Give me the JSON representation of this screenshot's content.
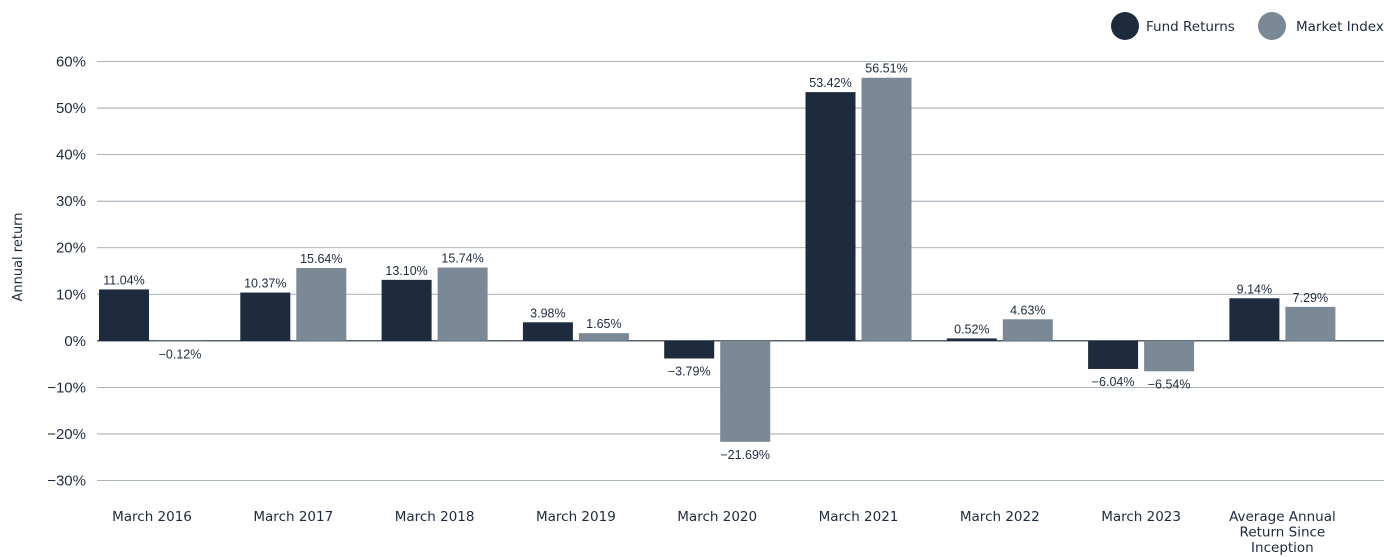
{
  "chart_data": {
    "type": "bar",
    "ylabel": "Annual return",
    "ylim": [
      -30,
      60
    ],
    "yticks": [
      60,
      50,
      40,
      30,
      20,
      10,
      0,
      -10,
      -20,
      -30
    ],
    "ytick_labels": [
      "60%",
      "50%",
      "40%",
      "30%",
      "20%",
      "10%",
      "0%",
      "−10%",
      "−20%",
      "−30%"
    ],
    "grid": true,
    "legend_position": "top-right",
    "categories": [
      [
        "March 2016"
      ],
      [
        "March 2017"
      ],
      [
        "March 2018"
      ],
      [
        "March 2019"
      ],
      [
        "March 2020"
      ],
      [
        "March 2021"
      ],
      [
        "March 2022"
      ],
      [
        "March 2023"
      ],
      [
        "Average Annual",
        "Return Since",
        "Inception"
      ]
    ],
    "series": [
      {
        "name": "Fund Returns",
        "color": "#1e2b3e",
        "values": [
          11.04,
          10.37,
          13.1,
          3.98,
          -3.79,
          53.42,
          0.52,
          -6.04,
          9.14
        ],
        "labels": [
          "11.04%",
          "10.37%",
          "13.10%",
          "3.98%",
          "−3.79%",
          "53.42%",
          "0.52%",
          "−6.04%",
          "9.14%"
        ]
      },
      {
        "name": "Market Index",
        "color": "#7a8995",
        "values": [
          -0.12,
          15.64,
          15.74,
          1.65,
          -21.69,
          56.51,
          4.63,
          -6.54,
          7.29
        ],
        "labels": [
          "−0.12%",
          "15.64%",
          "15.74%",
          "1.65%",
          "−21.69%",
          "56.51%",
          "4.63%",
          "−6.54%",
          "7.29%"
        ]
      }
    ],
    "grid_color": "#8d9aa3",
    "axis_color": "#1e2b3e"
  }
}
